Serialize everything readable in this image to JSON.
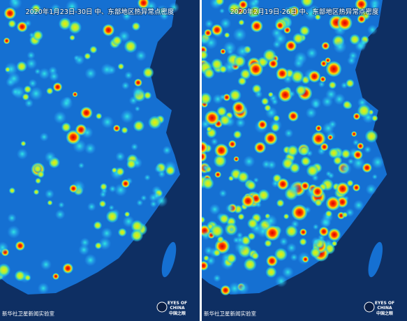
{
  "panels": [
    {
      "title": "2020年1月23日-30日  中、东部地区热异常点密度",
      "credit": "新华社卫星新闻实验室",
      "logo": {
        "line1": "EYES OF",
        "line2": "CHINA",
        "line3": "中国之眼"
      }
    },
    {
      "title": "2020年2月19日-26日  中、东部地区热异常点密度",
      "credit": "新华社卫星新闻实验室",
      "logo": {
        "line1": "EYES OF",
        "line2": "CHINA",
        "line3": "中国之眼"
      }
    }
  ]
}
